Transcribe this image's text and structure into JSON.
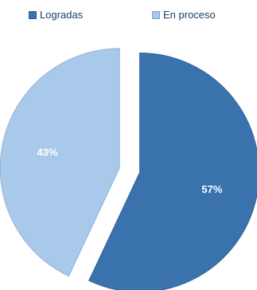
{
  "chart_data": {
    "type": "pie",
    "title": "",
    "legend_position": "top",
    "slices": [
      {
        "label": "Logradas",
        "value": 57,
        "value_label": "57%",
        "color": "#3a72ad"
      },
      {
        "label": "En proceso",
        "value": 43,
        "value_label": "43%",
        "color": "#a9c9ea"
      }
    ]
  }
}
